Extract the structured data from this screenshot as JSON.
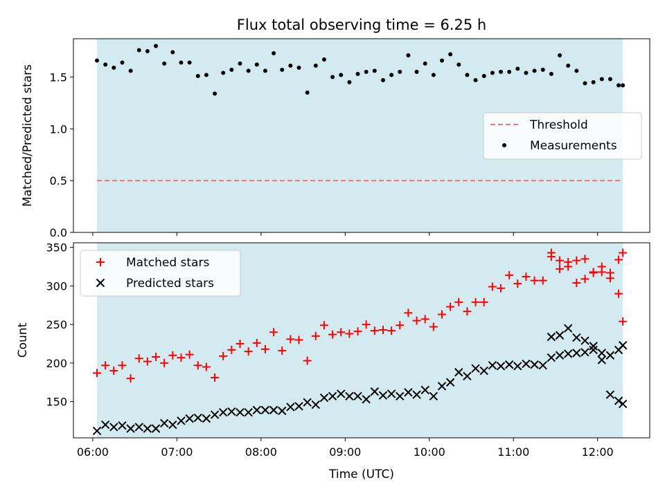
{
  "chart_data": {
    "title": "Flux total observing time = 6.25 h",
    "x_axis": {
      "label": "Time (UTC)",
      "ticks": [
        "06:00",
        "07:00",
        "08:00",
        "09:00",
        "10:00",
        "11:00",
        "12:00"
      ],
      "tick_hours": [
        6,
        7,
        8,
        9,
        10,
        11,
        12
      ],
      "range_hours": [
        5.77,
        12.62
      ]
    },
    "observing_window_hours": [
      6.05,
      12.3
    ],
    "colors": {
      "window": "#d4eaf1",
      "threshold": "#f07575",
      "measurements": "#000000",
      "matched": "#ff0000",
      "predicted": "#000000"
    },
    "panels": [
      {
        "type": "scatter",
        "ylabel": "Matched/Predicted stars",
        "ylim": [
          0,
          1.87
        ],
        "yticks": [
          0,
          0.5,
          1,
          1.5
        ],
        "ytick_labels": [
          "0.0",
          "0.5",
          "1.0",
          "1.5"
        ],
        "legend_position": "center-right",
        "threshold": {
          "name": "Threshold",
          "value": 0.5
        },
        "series": [
          {
            "name": "Measurements",
            "marker": "dot",
            "x": [
              6.05,
              6.15,
              6.25,
              6.35,
              6.45,
              6.55,
              6.65,
              6.75,
              6.85,
              6.95,
              7.05,
              7.15,
              7.25,
              7.35,
              7.45,
              7.55,
              7.65,
              7.75,
              7.85,
              7.95,
              8.05,
              8.15,
              8.25,
              8.35,
              8.45,
              8.55,
              8.65,
              8.75,
              8.85,
              8.95,
              9.05,
              9.15,
              9.25,
              9.35,
              9.45,
              9.55,
              9.65,
              9.75,
              9.85,
              9.95,
              10.05,
              10.15,
              10.25,
              10.35,
              10.45,
              10.55,
              10.65,
              10.75,
              10.85,
              10.95,
              11.05,
              11.15,
              11.25,
              11.35,
              11.45,
              11.55,
              11.65,
              11.75,
              11.85,
              11.95,
              12.05,
              12.15,
              12.25,
              12.3
            ],
            "values": [
              1.66,
              1.62,
              1.59,
              1.64,
              1.56,
              1.76,
              1.75,
              1.8,
              1.63,
              1.74,
              1.64,
              1.64,
              1.51,
              1.52,
              1.34,
              1.54,
              1.57,
              1.63,
              1.56,
              1.62,
              1.56,
              1.73,
              1.57,
              1.61,
              1.59,
              1.35,
              1.61,
              1.67,
              1.5,
              1.52,
              1.45,
              1.53,
              1.55,
              1.56,
              1.47,
              1.52,
              1.55,
              1.71,
              1.55,
              1.63,
              1.52,
              1.66,
              1.72,
              1.62,
              1.52,
              1.47,
              1.51,
              1.54,
              1.55,
              1.55,
              1.58,
              1.54,
              1.56,
              1.57,
              1.53,
              1.71,
              1.61,
              1.56,
              1.44,
              1.45,
              1.48,
              1.48,
              1.42,
              1.42
            ]
          }
        ]
      },
      {
        "type": "scatter",
        "ylabel": "Count",
        "ylim": [
          103,
          356
        ],
        "yticks": [
          150,
          200,
          250,
          300,
          350
        ],
        "ytick_labels": [
          "150",
          "200",
          "250",
          "300",
          "350"
        ],
        "legend_position": "upper-left",
        "series": [
          {
            "name": "Matched stars",
            "marker": "plus",
            "x": [
              6.05,
              6.15,
              6.25,
              6.35,
              6.45,
              6.55,
              6.65,
              6.75,
              6.85,
              6.95,
              7.05,
              7.15,
              7.25,
              7.35,
              7.45,
              7.55,
              7.65,
              7.75,
              7.85,
              7.95,
              8.05,
              8.15,
              8.25,
              8.35,
              8.45,
              8.55,
              8.65,
              8.75,
              8.85,
              8.95,
              9.05,
              9.15,
              9.25,
              9.35,
              9.45,
              9.55,
              9.65,
              9.75,
              9.85,
              9.95,
              10.05,
              10.15,
              10.25,
              10.35,
              10.45,
              10.55,
              10.65,
              10.75,
              10.85,
              10.95,
              11.05,
              11.15,
              11.25,
              11.35,
              11.45,
              11.55,
              11.65,
              11.75,
              11.85,
              11.95,
              12.05,
              12.15,
              12.25,
              12.3
            ],
            "values": [
              187,
              197,
              190,
              197,
              180,
              206,
              202,
              208,
              200,
              210,
              207,
              211,
              197,
              195,
              181,
              209,
              217,
              225,
              215,
              226,
              218,
              240,
              216,
              231,
              230,
              203,
              235,
              249,
              237,
              240,
              238,
              241,
              250,
              242,
              243,
              242,
              249,
              265,
              255,
              257,
              247,
              263,
              273,
              279,
              267,
              279,
              279,
              299,
              297,
              314,
              303,
              312,
              307,
              307,
              338,
              322,
              325,
              304,
              309,
              317,
              318,
              310,
              334,
              343
            ],
            "x2": [
              11.45,
              11.55,
              11.65,
              11.75,
              11.85,
              11.95,
              12.05,
              12.15,
              12.25,
              12.3
            ],
            "values2": [
              343,
              333,
              331,
              333,
              335,
              318,
              325,
              317,
              290,
              254
            ]
          },
          {
            "name": "Predicted stars",
            "marker": "x",
            "x": [
              6.05,
              6.15,
              6.25,
              6.35,
              6.45,
              6.55,
              6.65,
              6.75,
              6.85,
              6.95,
              7.05,
              7.15,
              7.25,
              7.35,
              7.45,
              7.55,
              7.65,
              7.75,
              7.85,
              7.95,
              8.05,
              8.15,
              8.25,
              8.35,
              8.45,
              8.55,
              8.65,
              8.75,
              8.85,
              8.95,
              9.05,
              9.15,
              9.25,
              9.35,
              9.45,
              9.55,
              9.65,
              9.75,
              9.85,
              9.95,
              10.05,
              10.15,
              10.25,
              10.35,
              10.45,
              10.55,
              10.65,
              10.75,
              10.85,
              10.95,
              11.05,
              11.15,
              11.25,
              11.35,
              11.45,
              11.55,
              11.65,
              11.75,
              11.85,
              11.95,
              12.05,
              12.15,
              12.25,
              12.3
            ],
            "values": [
              112,
              120,
              117,
              119,
              115,
              117,
              115,
              115,
              122,
              120,
              125,
              128,
              129,
              128,
              133,
              136,
              137,
              136,
              136,
              139,
              139,
              139,
              138,
              143,
              144,
              149,
              146,
              155,
              157,
              160,
              157,
              157,
              153,
              163,
              158,
              160,
              157,
              162,
              159,
              165,
              157,
              170,
              175,
              188,
              183,
              193,
              190,
              197,
              196,
              198,
              196,
              199,
              198,
              197,
              207,
              210,
              212,
              213,
              214,
              217,
              213,
              210,
              217,
              223
            ],
            "x2": [
              11.45,
              11.55,
              11.65,
              11.75,
              11.85,
              11.95,
              12.05,
              12.15,
              12.25,
              12.3
            ],
            "values2": [
              234,
              236,
              245,
              233,
              229,
              222,
              204,
              159,
              151,
              147
            ]
          }
        ]
      }
    ]
  }
}
